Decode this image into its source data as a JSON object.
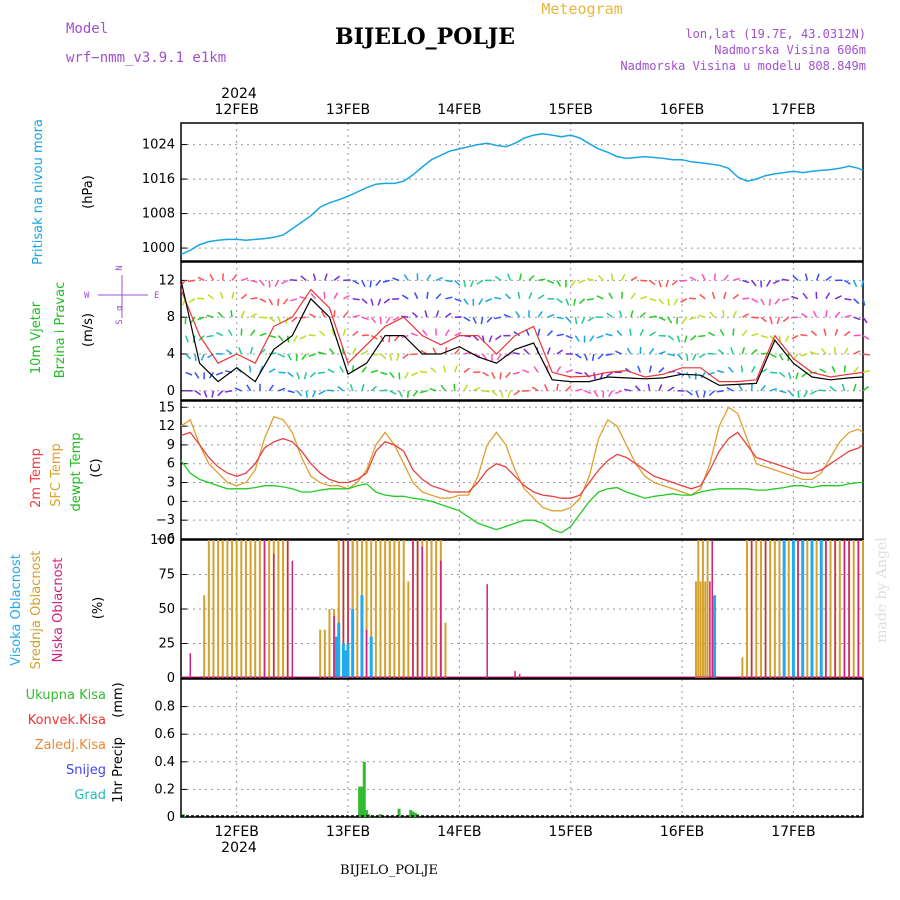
{
  "header": {
    "model_label": "Model",
    "model_name": "wrf−nmm_v3.9.1  e1km",
    "title": "BIJELO_POLJE",
    "subtitle": "Meteogram",
    "coords": "lon,lat (19.7E, 43.0312N)",
    "elevation": "Nadmorska Visina 606m",
    "model_elevation": "Nadmorska Visina u modelu 808.849m"
  },
  "footer": {
    "station": "BIJELO_POLJE",
    "watermark": "made by Angel"
  },
  "time_axis": {
    "year": "2024",
    "days": [
      "12FEB",
      "13FEB",
      "14FEB",
      "15FEB",
      "16FEB",
      "17FEB"
    ],
    "day_positions_hours": [
      12,
      36,
      60,
      84,
      108,
      132
    ],
    "range_hours": [
      0,
      147
    ]
  },
  "colors": {
    "pressure": "#1aa6e0",
    "temp2m": "#e84040",
    "sfc": "#e0a030",
    "dewpt": "#22cc22",
    "wind_label": "#22bb22",
    "cloud_high": "#22aaee",
    "cloud_mid": "#d4a030",
    "cloud_low": "#d0207f",
    "rain_total": "#33bb33",
    "rain_conv": "#ee3333",
    "rain_frozen": "#ee8833",
    "snow": "#4444ee",
    "hail": "#22bbbb"
  },
  "chart_data": [
    {
      "type": "line",
      "name": "pressure",
      "ylabel": "Pritisak na nivou mora",
      "units": "(hPa)",
      "ylim": [
        997,
        1029
      ],
      "yticks": [
        1000,
        1008,
        1016,
        1024
      ],
      "x": [
        0,
        2,
        4,
        6,
        8,
        10,
        12,
        14,
        16,
        18,
        20,
        22,
        24,
        26,
        28,
        30,
        32,
        34,
        36,
        38,
        40,
        42,
        44,
        46,
        48,
        50,
        52,
        54,
        56,
        58,
        60,
        62,
        64,
        66,
        68,
        70,
        72,
        74,
        76,
        78,
        80,
        82,
        84,
        86,
        88,
        90,
        92,
        94,
        96,
        98,
        100,
        102,
        104,
        106,
        108,
        110,
        112,
        114,
        116,
        118,
        120,
        122,
        124,
        126,
        128,
        130,
        132,
        134,
        136,
        138,
        140,
        142,
        144,
        146,
        147
      ],
      "y": [
        998.5,
        999.5,
        1000.8,
        1001.5,
        1001.8,
        1002,
        1002,
        1001.8,
        1002,
        1002.2,
        1002.5,
        1003,
        1004.5,
        1006,
        1007.5,
        1009.5,
        1010.5,
        1011.2,
        1012,
        1013,
        1014,
        1014.8,
        1015,
        1015,
        1015.5,
        1017,
        1018.8,
        1020.5,
        1021.5,
        1022.5,
        1023,
        1023.5,
        1024,
        1024.3,
        1023.8,
        1023.5,
        1024.3,
        1025.5,
        1026.2,
        1026.5,
        1026.2,
        1025.8,
        1026.2,
        1025.5,
        1024.2,
        1023,
        1022.2,
        1021.2,
        1020.8,
        1021,
        1021.2,
        1021,
        1020.8,
        1020.5,
        1020.5,
        1020,
        1019.8,
        1019.5,
        1019.2,
        1018.5,
        1016.5,
        1015.5,
        1016,
        1016.8,
        1017.2,
        1017.5,
        1017.8,
        1017.5,
        1017.8,
        1018,
        1018.2,
        1018.5,
        1019,
        1018.5,
        1018
      ]
    },
    {
      "type": "line",
      "name": "wind",
      "ylabel": "10m Vjetar",
      "ylabel2": "Brzina i Pravac",
      "units": "(m/s)",
      "ylim": [
        -1,
        14
      ],
      "yticks": [
        0,
        4,
        8,
        12
      ],
      "series": [
        {
          "name": "speed",
          "x": [
            0,
            4,
            8,
            12,
            16,
            20,
            24,
            28,
            32,
            36,
            40,
            44,
            48,
            52,
            56,
            60,
            64,
            68,
            72,
            76,
            80,
            84,
            88,
            92,
            96,
            100,
            104,
            108,
            112,
            116,
            120,
            124,
            128,
            132,
            136,
            140,
            144,
            147
          ],
          "y": [
            12,
            3,
            1,
            2.5,
            1,
            4.5,
            6,
            10,
            8,
            1.8,
            3,
            6,
            6,
            4,
            4,
            4.8,
            3.7,
            3,
            4.5,
            5.2,
            1.2,
            1,
            1,
            1.5,
            1.4,
            1.3,
            1.4,
            1.8,
            1.7,
            0.6,
            0.7,
            0.8,
            5.5,
            3,
            1.5,
            1.2,
            1.4,
            1.5
          ]
        },
        {
          "name": "gust",
          "x": [
            0,
            4,
            8,
            12,
            16,
            20,
            24,
            28,
            32,
            36,
            40,
            44,
            48,
            52,
            56,
            60,
            64,
            68,
            72,
            76,
            80,
            84,
            88,
            92,
            96,
            100,
            104,
            108,
            112,
            116,
            120,
            124,
            128,
            132,
            136,
            140,
            144,
            147
          ],
          "y": [
            11,
            6,
            3,
            4,
            3,
            7,
            8,
            11,
            9,
            3,
            5,
            7,
            8,
            6,
            5,
            6,
            6,
            4,
            6,
            7,
            2,
            1.5,
            1.6,
            2,
            2.2,
            1.5,
            1.8,
            2.5,
            2.5,
            1,
            1,
            1.2,
            6,
            3.5,
            2,
            1.5,
            1.8,
            2
          ]
        }
      ],
      "direction_legend": {
        "north": "N",
        "east": "E",
        "west": "W",
        "south": "S",
        "north_left": "α"
      }
    },
    {
      "type": "line",
      "name": "temperature",
      "ylabel": "2m Temp",
      "ylabel2": "SFC Temp",
      "ylabel3": "dewpt Temp",
      "units": "(C)",
      "ylim": [
        -6,
        16
      ],
      "yticks": [
        -6,
        -3,
        0,
        3,
        6,
        9,
        12,
        15
      ],
      "series": [
        {
          "name": "2m",
          "x": [
            0,
            2,
            4,
            6,
            8,
            10,
            12,
            14,
            16,
            18,
            20,
            22,
            24,
            26,
            28,
            30,
            32,
            34,
            36,
            38,
            40,
            42,
            44,
            46,
            48,
            50,
            52,
            54,
            56,
            58,
            60,
            62,
            64,
            66,
            68,
            70,
            72,
            74,
            76,
            78,
            80,
            82,
            84,
            86,
            88,
            90,
            92,
            94,
            96,
            98,
            100,
            102,
            104,
            106,
            108,
            110,
            112,
            114,
            116,
            118,
            120,
            122,
            124,
            126,
            128,
            130,
            132,
            134,
            136,
            138,
            140,
            142,
            144,
            146,
            147
          ],
          "y": [
            10.5,
            11,
            9,
            7,
            5.5,
            4.5,
            4,
            4.5,
            6,
            8.5,
            9.5,
            10,
            9.5,
            8,
            6,
            4.5,
            3.5,
            3,
            3,
            3.5,
            4.5,
            8,
            9.5,
            9,
            8,
            5,
            3.5,
            2.5,
            2,
            1.5,
            1.5,
            1.5,
            3,
            5,
            6,
            5.5,
            4,
            2.5,
            1.5,
            1,
            0.8,
            0.5,
            0.5,
            1,
            3,
            5,
            6.5,
            7.5,
            7,
            6,
            5,
            4,
            3.5,
            3,
            2.5,
            2,
            2.5,
            5,
            8,
            10,
            11,
            9,
            7,
            6.5,
            6,
            5.5,
            5,
            4.5,
            4.5,
            5,
            6,
            7,
            8,
            8.5,
            9
          ]
        },
        {
          "name": "sfc",
          "x": [
            0,
            2,
            4,
            6,
            8,
            10,
            12,
            14,
            16,
            18,
            20,
            22,
            24,
            26,
            28,
            30,
            32,
            34,
            36,
            38,
            40,
            42,
            44,
            46,
            48,
            50,
            52,
            54,
            56,
            58,
            60,
            62,
            64,
            66,
            68,
            70,
            72,
            74,
            76,
            78,
            80,
            82,
            84,
            86,
            88,
            90,
            92,
            94,
            96,
            98,
            100,
            102,
            104,
            106,
            108,
            110,
            112,
            114,
            116,
            118,
            120,
            122,
            124,
            126,
            128,
            130,
            132,
            134,
            136,
            138,
            140,
            142,
            144,
            146,
            147
          ],
          "y": [
            12,
            13,
            9,
            6,
            4.5,
            3,
            2.5,
            3,
            5,
            10,
            13.5,
            13,
            11,
            7,
            4,
            3,
            2.5,
            2.5,
            2,
            3,
            5,
            9,
            11,
            9,
            6,
            3,
            1.5,
            1,
            0.5,
            0.5,
            1,
            1,
            4,
            9,
            11,
            9,
            5,
            2,
            0.5,
            -1,
            -1.5,
            -1.5,
            -1,
            0.5,
            4,
            10,
            13,
            12,
            9,
            6,
            4,
            3,
            2.5,
            2,
            1.5,
            1,
            2,
            6,
            12,
            15,
            14,
            10,
            6,
            5.5,
            5,
            4.5,
            4,
            3.5,
            3.5,
            4.5,
            7,
            9.5,
            11,
            11.5,
            11
          ]
        },
        {
          "name": "dewpt",
          "x": [
            0,
            2,
            4,
            6,
            8,
            10,
            12,
            14,
            16,
            18,
            20,
            22,
            24,
            26,
            28,
            30,
            32,
            34,
            36,
            38,
            40,
            42,
            44,
            46,
            48,
            50,
            52,
            54,
            56,
            58,
            60,
            62,
            64,
            66,
            68,
            70,
            72,
            74,
            76,
            78,
            80,
            82,
            84,
            86,
            88,
            90,
            92,
            94,
            96,
            98,
            100,
            102,
            104,
            106,
            108,
            110,
            112,
            114,
            116,
            118,
            120,
            122,
            124,
            126,
            128,
            130,
            132,
            134,
            136,
            138,
            140,
            142,
            144,
            146,
            147
          ],
          "y": [
            6.5,
            4.5,
            3.5,
            3,
            2.5,
            2,
            2,
            2,
            2.2,
            2.5,
            2.5,
            2.3,
            2,
            1.5,
            1.5,
            1.8,
            2,
            2,
            2,
            2.5,
            2.8,
            1.5,
            1,
            0.8,
            0.8,
            0.5,
            0.3,
            0,
            -0.5,
            -1,
            -1.5,
            -2.5,
            -3.5,
            -4,
            -4.5,
            -4,
            -3.5,
            -3,
            -3,
            -3.5,
            -4.5,
            -5,
            -4,
            -2,
            0,
            1.5,
            2,
            2.2,
            1.5,
            1,
            0.5,
            0.8,
            1,
            1.2,
            1,
            1,
            1.5,
            1.8,
            2,
            2,
            2,
            2,
            1.8,
            1.8,
            2,
            2.2,
            2.5,
            2.5,
            2.2,
            2.5,
            2.5,
            2.5,
            2.8,
            3,
            3
          ]
        }
      ]
    },
    {
      "type": "bar",
      "name": "clouds",
      "ylabel": "Visoka Oblacnost",
      "ylabel2": "Srednja Oblacnost",
      "ylabel3": "Niska Oblacnost",
      "units": "(%)",
      "ylim": [
        0,
        100
      ],
      "yticks": [
        0,
        25,
        50,
        75,
        100
      ],
      "series": [
        {
          "name": "mid",
          "intervals": [
            [
              6,
              23,
              100
            ],
            [
              30,
              33,
              35
            ],
            [
              32,
              34,
              50
            ],
            [
              34,
              37,
              100
            ],
            [
              37,
              45,
              100
            ],
            [
              45,
              48,
              100
            ],
            [
              48,
              50,
              70
            ],
            [
              50,
              56,
              100
            ],
            [
              56,
              57,
              40
            ],
            [
              111,
              113,
              70
            ],
            [
              111.5,
              114,
              100
            ],
            [
              121,
              122,
              15
            ],
            [
              122,
              147,
              100
            ]
          ],
          "single": [
            [
              5,
              60
            ]
          ]
        },
        {
          "name": "low",
          "x": [
            2,
            18,
            20,
            23,
            24,
            33,
            35,
            36,
            40,
            50,
            51,
            52,
            56,
            66,
            72,
            73,
            114,
            114.5,
            123,
            126,
            133,
            139,
            141,
            143,
            144,
            146
          ],
          "y": [
            18,
            100,
            90,
            100,
            85,
            45,
            100,
            100,
            35,
            100,
            100,
            95,
            85,
            68,
            5,
            3,
            70,
            100,
            100,
            100,
            100,
            100,
            100,
            100,
            100,
            100
          ]
        },
        {
          "name": "high",
          "x": [
            33.5,
            34,
            35,
            36,
            35.5,
            37,
            39,
            41,
            115,
            130,
            132,
            134,
            136,
            138
          ],
          "y": [
            30,
            40,
            25,
            25,
            20,
            50,
            60,
            30,
            60,
            100,
            100,
            100,
            100,
            100
          ]
        }
      ]
    },
    {
      "type": "bar",
      "name": "precip",
      "ylabel": "1hr Precip",
      "units": "(mm)",
      "ylim": [
        0,
        1
      ],
      "yticks": [
        0,
        0.2,
        0.4,
        0.6,
        0.8
      ],
      "legend": [
        "Ukupna Kisa",
        "Konvek.Kisa",
        "Zaledj.Kisa",
        "Snijeg",
        "Grad"
      ],
      "x": [
        0.5,
        38.5,
        39,
        39.5,
        40,
        40.5,
        43,
        47,
        49.5,
        50,
        50.5,
        51
      ],
      "values": [
        0.02,
        0.22,
        0.22,
        0.4,
        0.05,
        0.02,
        0.02,
        0.06,
        0.05,
        0.04,
        0.03,
        0.02
      ]
    }
  ]
}
